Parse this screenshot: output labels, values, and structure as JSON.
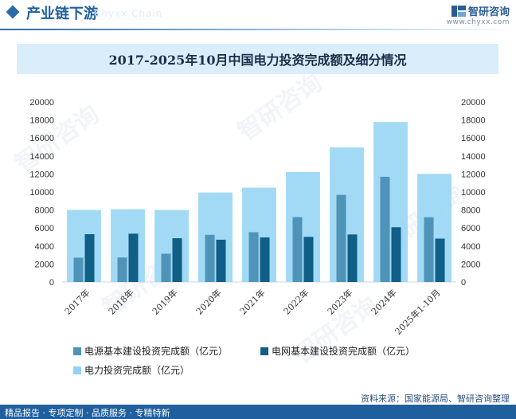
{
  "header": {
    "section_title": "产业链下游",
    "watermark_text": "Chyxx Chain",
    "brand_name": "智研咨询",
    "brand_url": "www.chyxx.com"
  },
  "watermark": "智研咨询",
  "colors": {
    "accent": "#1f5f9e",
    "series_total": "#92d3f3",
    "series_power": "#4f93b8",
    "series_grid": "#0f5f86"
  },
  "chart_data": {
    "type": "bar",
    "title": "2017-2025年10月中国电力投资完成额及细分情况",
    "categories": [
      "2017年",
      "2018年",
      "2019年",
      "2020年",
      "2021年",
      "2022年",
      "2023年",
      "2024年",
      "2025年1-10月"
    ],
    "series": [
      {
        "name": "电源基本建设投资完成额（亿元）",
        "values": [
          2700,
          2720,
          3140,
          5240,
          5530,
          7210,
          9680,
          11690,
          7190
        ]
      },
      {
        "name": "电网基本建设投资完成额（亿元）",
        "values": [
          5310,
          5370,
          4860,
          4700,
          4950,
          5010,
          5280,
          6080,
          4820
        ]
      },
      {
        "name": "电力投资完成额（亿元）",
        "values": [
          8010,
          8090,
          8000,
          9940,
          10480,
          12220,
          14950,
          17770,
          12010
        ]
      }
    ],
    "yticks": [
      "0",
      "2000",
      "4000",
      "6000",
      "8000",
      "10000",
      "12000",
      "14000",
      "16000",
      "18000",
      "20000"
    ],
    "ylim": [
      0,
      20000
    ],
    "grid": false
  },
  "footer": {
    "tagline": "精品报告 · 专项定制 · 品质服务 · 专精特新",
    "source": "资料来源：国家能源局、智研咨询整理"
  }
}
